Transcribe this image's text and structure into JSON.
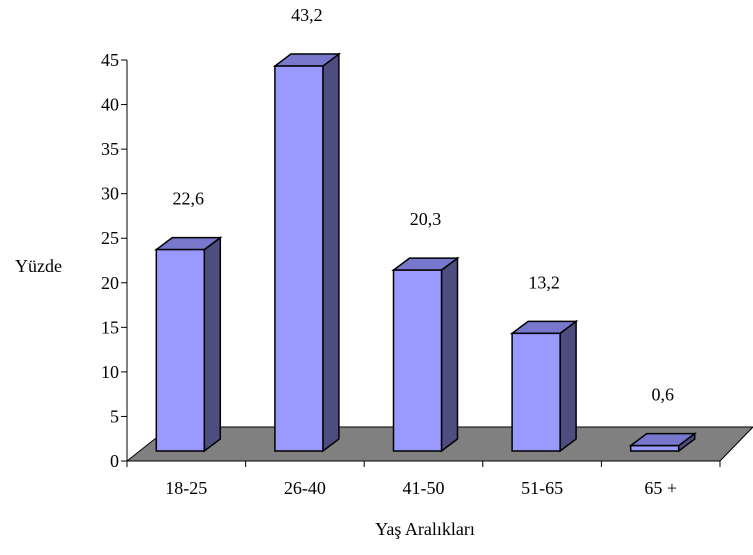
{
  "chart_data": {
    "type": "bar",
    "title": "",
    "xlabel": "Yaş Aralıkları",
    "ylabel": "Yüzde",
    "categories": [
      "18-25",
      "26-40",
      "41-50",
      "51-65",
      "65 +"
    ],
    "values": [
      22.6,
      43.2,
      20.3,
      13.2,
      0.6
    ],
    "data_labels": [
      "22,6",
      "43,2",
      "20,3",
      "13,2",
      "0,6"
    ],
    "ylim": [
      0,
      45
    ],
    "yticks": [
      0,
      5,
      10,
      15,
      20,
      25,
      30,
      35,
      40,
      45
    ],
    "grid": false,
    "legend": "none",
    "style": "3d-column",
    "colors": {
      "bar_front": "#9999ff",
      "bar_side": "#4d4d80",
      "bar_top": "#7777cc",
      "floor": "#808080",
      "axis": "#000000"
    }
  }
}
